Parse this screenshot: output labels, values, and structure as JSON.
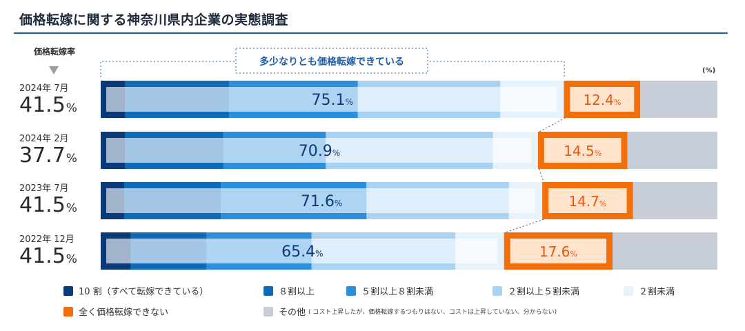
{
  "title": "価格転嫁に関する神奈川県内企業の実態調査",
  "rate_header": "価格転嫁率",
  "unit_label": "(%)",
  "callout_label": "多少なりとも価格転嫁できている",
  "colors": {
    "title_rule": "#1f5fa8",
    "s10": "#0b3a78",
    "s8plus": "#0f6bb8",
    "s5to8": "#2c8fdc",
    "s2to5": "#a9d1f2",
    "under2": "#e6f2fc",
    "none": "#f26f0a",
    "other": "#c7cdd6"
  },
  "rows": [
    {
      "date": "2024年 7月",
      "rate": "41.5",
      "pct_sign": "%"
    },
    {
      "date": "2024年 2月",
      "rate": "37.7",
      "pct_sign": "%"
    },
    {
      "date": "2023年 7月",
      "rate": "41.5",
      "pct_sign": "%"
    },
    {
      "date": "2022年 12月",
      "rate": "41.5",
      "pct_sign": "%"
    }
  ],
  "chart_data": {
    "type": "bar",
    "orientation": "horizontal",
    "stacked": true,
    "percent_scale": true,
    "title": "価格転嫁に関する神奈川県内企業の実態調査",
    "categories": [
      "2024年 7月",
      "2024年 2月",
      "2023年 7月",
      "2022年 12月"
    ],
    "xlim": [
      0,
      100
    ],
    "series": [
      {
        "name": "10 割（すべて転嫁できている）",
        "values": [
          4.0,
          4.0,
          3.8,
          4.9
        ]
      },
      {
        "name": "８割以上",
        "values": [
          16.8,
          15.9,
          15.7,
          12.3
        ]
      },
      {
        "name": "５割以上８割未満",
        "values": [
          20.9,
          16.6,
          23.6,
          17.0
        ]
      },
      {
        "name": "２割以上５割未満",
        "values": [
          23.1,
          27.1,
          23.1,
          23.3
        ]
      },
      {
        "name": "２割未満",
        "values": [
          10.3,
          7.3,
          5.4,
          7.9
        ]
      },
      {
        "name": "全く価格転嫁できない",
        "values": [
          12.4,
          14.5,
          14.7,
          17.6
        ]
      },
      {
        "name": "その他",
        "values": [
          12.5,
          14.6,
          13.7,
          17.0
        ]
      }
    ],
    "group_totals": {
      "transfer_possible": [
        "75.1",
        "70.9",
        "71.6",
        "65.4"
      ],
      "no_transfer": [
        "12.4",
        "14.5",
        "14.7",
        "17.6"
      ]
    },
    "pct_sign": "%"
  },
  "legend": {
    "items": [
      {
        "label": "10 割（すべて転嫁できている）",
        "color": "#0b3a78"
      },
      {
        "label": "８割以上",
        "color": "#0f6bb8"
      },
      {
        "label": "５割以上８割未満",
        "color": "#2c8fdc"
      },
      {
        "label": "２割以上５割未満",
        "color": "#a9d1f2"
      },
      {
        "label": "２割未満",
        "color": "#e6f2fc"
      },
      {
        "label": "全く価格転嫁できない",
        "color": "#f26f0a"
      },
      {
        "label": "その他",
        "color": "#c7cdd6",
        "note": "( コスト上昇したが、価格転嫁するつもりはない、コストは上昇していない、分からない)"
      }
    ]
  }
}
